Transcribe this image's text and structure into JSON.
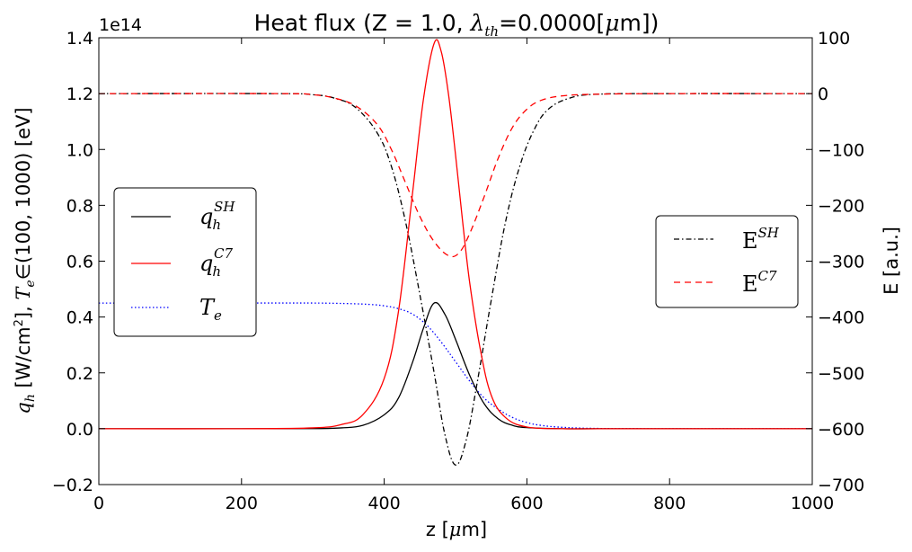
{
  "chart_data": {
    "type": "line",
    "title_main": "Heat flux (Z = 1.0, ",
    "title_lambda": "λ",
    "title_lambda_sub": "th",
    "title_eq": "=0.0000[",
    "title_mu": "μ",
    "title_end": "m])",
    "xlabel_pre": "z [",
    "xlabel_mu": "μ",
    "xlabel_post": "m]",
    "ylabel_left_q": "q",
    "ylabel_left_q_sub": "h",
    "ylabel_left_units": " [W/cm",
    "ylabel_left_sup": "2",
    "ylabel_left_mid": "], ",
    "ylabel_left_T": "T",
    "ylabel_left_T_sub": "e",
    "ylabel_left_post": "∈(100, 1000) [eV]",
    "ylabel_right": "E [a.u.]",
    "offset_text": "1e14",
    "xlim": [
      0,
      1000
    ],
    "ylim_left": [
      -0.2,
      1.4
    ],
    "ylim_right": [
      -700,
      100
    ],
    "xticks": [
      "0",
      "200",
      "400",
      "600",
      "800",
      "1000"
    ],
    "xtick_values": [
      0,
      200,
      400,
      600,
      800,
      1000
    ],
    "yticks_left": [
      "−0.2",
      "0.0",
      "0.2",
      "0.4",
      "0.6",
      "0.8",
      "1.0",
      "1.2",
      "1.4"
    ],
    "ytick_left_values": [
      -0.2,
      0.0,
      0.2,
      0.4,
      0.6,
      0.8,
      1.0,
      1.2,
      1.4
    ],
    "yticks_right": [
      "−700",
      "−600",
      "−500",
      "−400",
      "−300",
      "−200",
      "−100",
      "0",
      "100"
    ],
    "ytick_right_values": [
      -700,
      -600,
      -500,
      -400,
      -300,
      -200,
      -100,
      0,
      100
    ],
    "grid": false,
    "legend_left": {
      "placement": "center-left",
      "entries": [
        {
          "label_base": "q",
          "label_sub": "h",
          "label_sup": "SH",
          "color": "#000000",
          "style": "solid"
        },
        {
          "label_base": "q",
          "label_sub": "h",
          "label_sup": "C7",
          "color": "#ff0000",
          "style": "solid"
        },
        {
          "label_base": "T",
          "label_sub": "e",
          "label_sup": "",
          "color": "#0000ff",
          "style": "dotted"
        }
      ]
    },
    "legend_right": {
      "placement": "center-right",
      "entries": [
        {
          "label_base": "E",
          "label_sup": "SH",
          "color": "#000000",
          "style": "dashdot"
        },
        {
          "label_base": "E",
          "label_sup": "C7",
          "color": "#ff0000",
          "style": "dashed"
        }
      ]
    },
    "series": [
      {
        "name": "q_h^SH",
        "axis": "left",
        "color": "#000000",
        "style": "solid",
        "x": [
          0,
          200,
          300,
          340,
          370,
          400,
          420,
          440,
          455,
          470,
          485,
          500,
          520,
          540,
          560,
          580,
          600,
          650,
          700,
          800,
          1000
        ],
        "y": [
          0,
          0,
          0.0005,
          0.003,
          0.012,
          0.05,
          0.11,
          0.24,
          0.36,
          0.45,
          0.41,
          0.32,
          0.19,
          0.09,
          0.035,
          0.012,
          0.004,
          0,
          0,
          0,
          0
        ]
      },
      {
        "name": "q_h^C7",
        "axis": "left",
        "color": "#ff0000",
        "style": "solid",
        "x": [
          0,
          200,
          300,
          340,
          370,
          400,
          420,
          440,
          455,
          470,
          480,
          490,
          500,
          510,
          520,
          535,
          550,
          570,
          600,
          650,
          700,
          800,
          1000
        ],
        "y": [
          0,
          0,
          0.003,
          0.015,
          0.05,
          0.18,
          0.42,
          0.85,
          1.18,
          1.38,
          1.35,
          1.2,
          0.98,
          0.74,
          0.52,
          0.28,
          0.12,
          0.04,
          0.006,
          0,
          0,
          0,
          0
        ]
      },
      {
        "name": "T_e",
        "axis": "left",
        "color": "#0000ff",
        "style": "dotted",
        "x": [
          0,
          200,
          300,
          350,
          380,
          400,
          420,
          440,
          460,
          480,
          500,
          520,
          540,
          560,
          580,
          600,
          620,
          650,
          700,
          800,
          1000
        ],
        "y": [
          0.45,
          0.45,
          0.45,
          0.448,
          0.445,
          0.44,
          0.43,
          0.41,
          0.37,
          0.31,
          0.24,
          0.17,
          0.11,
          0.07,
          0.04,
          0.022,
          0.012,
          0.005,
          0.001,
          0,
          0
        ]
      },
      {
        "name": "E^SH",
        "axis": "right",
        "color": "#000000",
        "style": "dashdot",
        "x": [
          0,
          250,
          300,
          330,
          360,
          390,
          410,
          430,
          450,
          470,
          485,
          500,
          515,
          530,
          550,
          570,
          590,
          610,
          630,
          660,
          700,
          800,
          1000
        ],
        "y": [
          0,
          0,
          -2,
          -8,
          -25,
          -70,
          -130,
          -230,
          -360,
          -500,
          -610,
          -665,
          -620,
          -520,
          -370,
          -230,
          -130,
          -65,
          -28,
          -8,
          -1,
          0,
          0
        ]
      },
      {
        "name": "E^C7",
        "axis": "right",
        "color": "#ff0000",
        "style": "dashed",
        "x": [
          0,
          250,
          300,
          330,
          360,
          390,
          410,
          430,
          450,
          470,
          490,
          505,
          520,
          540,
          560,
          580,
          600,
          620,
          650,
          700,
          800,
          1000
        ],
        "y": [
          0,
          0,
          -2,
          -8,
          -22,
          -55,
          -100,
          -160,
          -220,
          -265,
          -290,
          -285,
          -250,
          -185,
          -115,
          -60,
          -28,
          -12,
          -4,
          -1,
          0,
          0
        ]
      }
    ]
  }
}
